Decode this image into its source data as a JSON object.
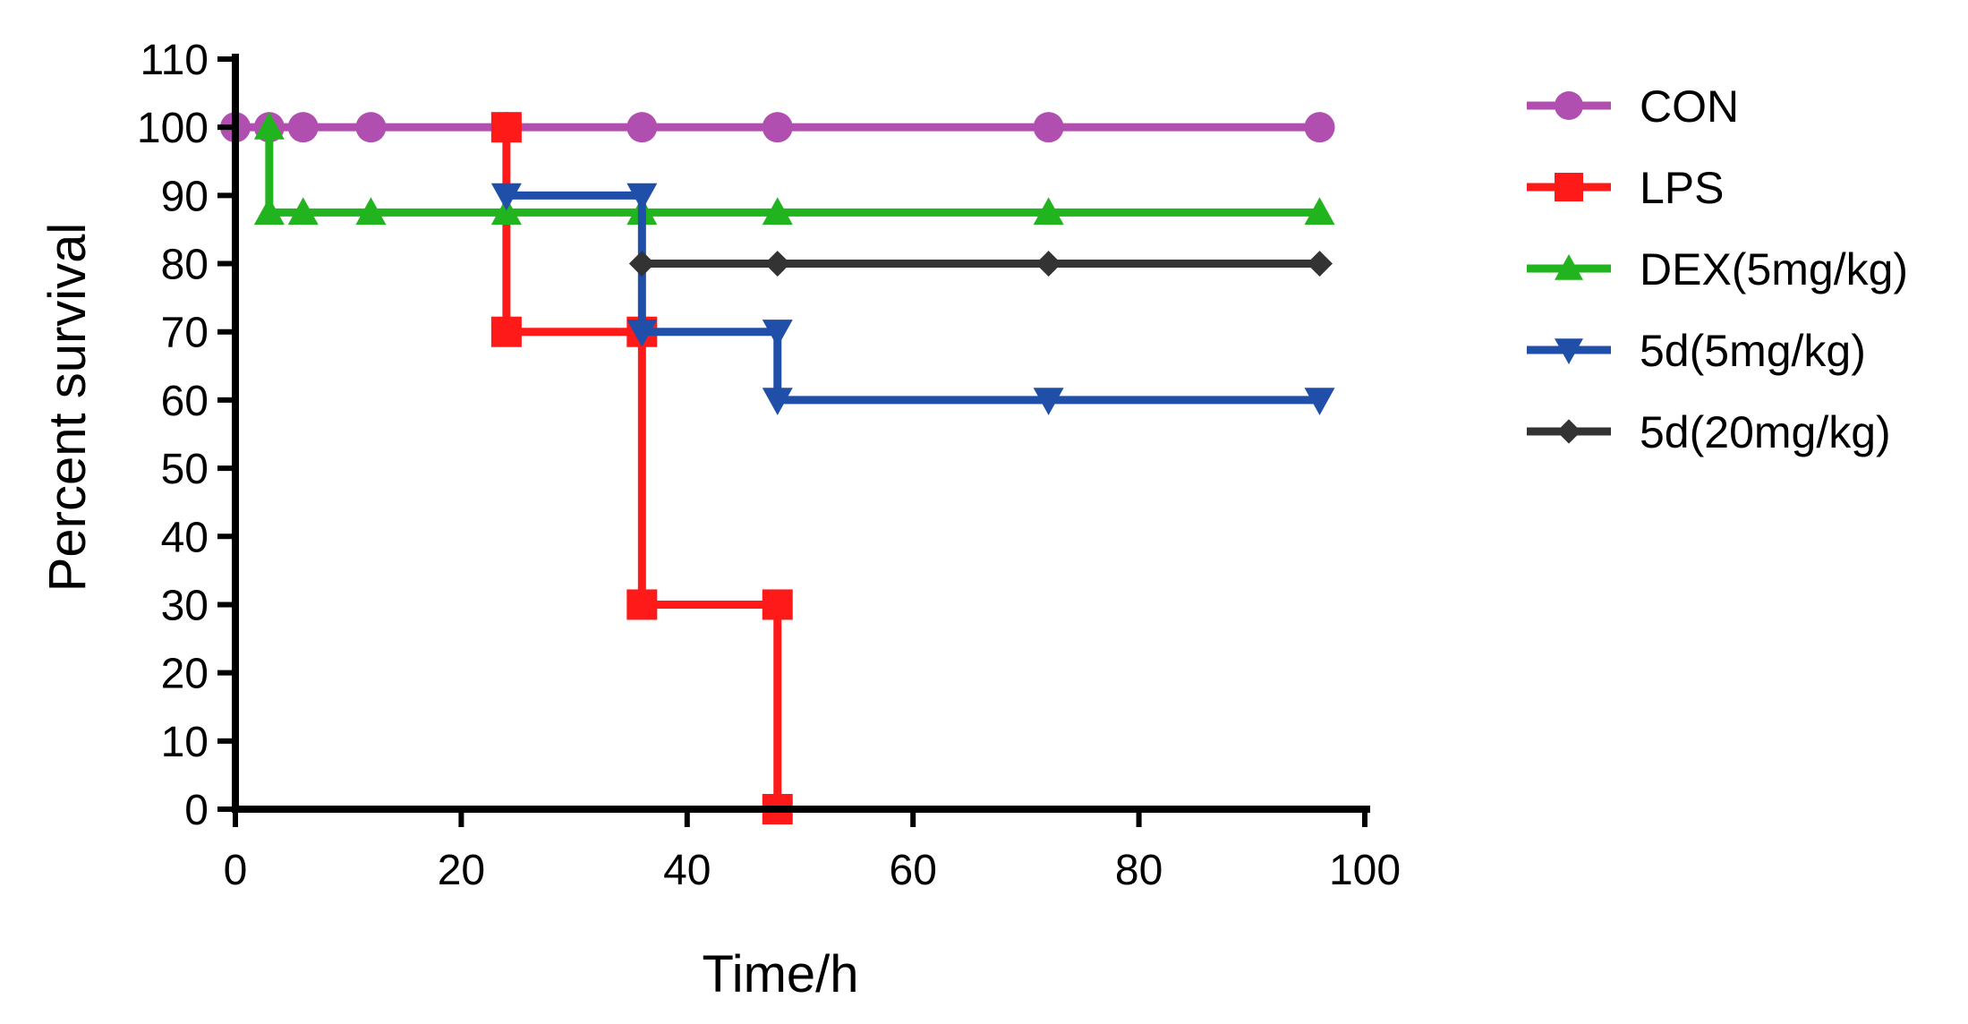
{
  "chart_data": {
    "type": "line",
    "step": true,
    "title": "",
    "xlabel": "Time/h",
    "ylabel": "Percent survival",
    "xlim": [
      0,
      100
    ],
    "ylim": [
      0,
      110
    ],
    "xticks": [
      0,
      20,
      40,
      60,
      80,
      100
    ],
    "yticks": [
      0,
      10,
      20,
      30,
      40,
      50,
      60,
      70,
      80,
      90,
      100,
      110
    ],
    "grid": false,
    "legend_position": "right",
    "series": [
      {
        "name": "CON",
        "color": "#b04fb0",
        "marker": "circle",
        "points": [
          [
            0,
            100
          ],
          [
            3,
            100
          ],
          [
            6,
            100
          ],
          [
            12,
            100
          ],
          [
            24,
            100
          ],
          [
            36,
            100
          ],
          [
            48,
            100
          ],
          [
            72,
            100
          ],
          [
            96,
            100
          ]
        ]
      },
      {
        "name": "LPS",
        "color": "#ff1a1a",
        "marker": "square",
        "points": [
          [
            24,
            100
          ],
          [
            24,
            70
          ],
          [
            36,
            70
          ],
          [
            36,
            30
          ],
          [
            48,
            30
          ],
          [
            48,
            0
          ]
        ]
      },
      {
        "name": "DEX(5mg/kg)",
        "color": "#22b41e",
        "marker": "triangle-up",
        "points": [
          [
            3,
            100
          ],
          [
            3,
            87.5
          ],
          [
            6,
            87.5
          ],
          [
            12,
            87.5
          ],
          [
            24,
            87.5
          ],
          [
            36,
            87.5
          ],
          [
            48,
            87.5
          ],
          [
            72,
            87.5
          ],
          [
            96,
            87.5
          ]
        ]
      },
      {
        "name": "5d(5mg/kg)",
        "color": "#1f4fa8",
        "marker": "triangle-down",
        "points": [
          [
            24,
            90
          ],
          [
            36,
            90
          ],
          [
            36,
            70
          ],
          [
            48,
            70
          ],
          [
            48,
            60
          ],
          [
            72,
            60
          ],
          [
            96,
            60
          ]
        ]
      },
      {
        "name": "5d(20mg/kg)",
        "color": "#333333",
        "marker": "diamond",
        "points": [
          [
            36,
            80
          ],
          [
            48,
            80
          ],
          [
            72,
            80
          ],
          [
            96,
            80
          ]
        ]
      }
    ]
  }
}
